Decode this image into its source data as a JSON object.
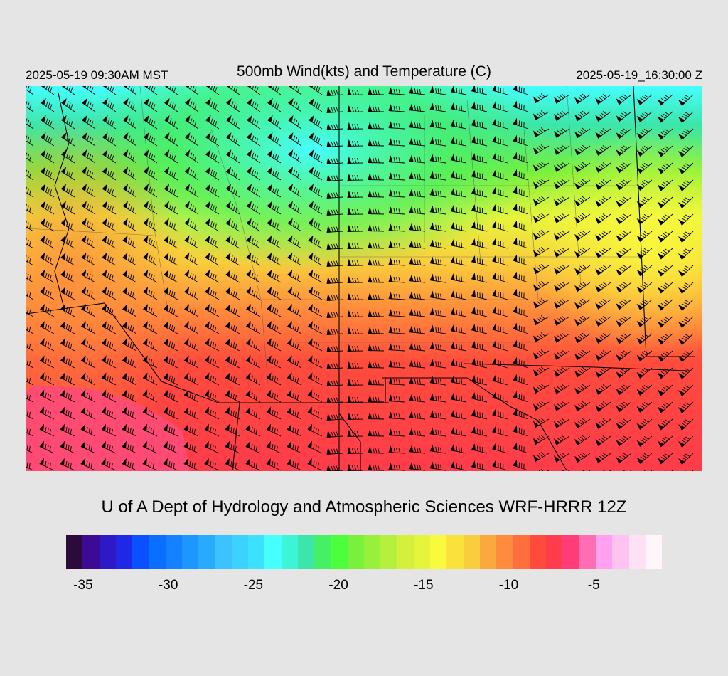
{
  "header": {
    "valid_time": "2025-05-19 09:30AM MST",
    "title": "500mb Wind(kts) and Temperature (C)",
    "init_time": "2025-05-19_16:30:00 Z"
  },
  "footer": {
    "source": "U of A Dept of Hydrology and Atmospheric Sciences WRF-HRRR 12Z"
  },
  "colorbar": {
    "colors": [
      "#2d0a3c",
      "#3c0a96",
      "#2d19c8",
      "#1e28e6",
      "#0a50ff",
      "#0a6eff",
      "#1482ff",
      "#1e96ff",
      "#28aaff",
      "#3cc3ff",
      "#3cd2ff",
      "#3ce1ff",
      "#46ffff",
      "#3cf5d7",
      "#3ce6aa",
      "#46f064",
      "#4bff3c",
      "#78f03c",
      "#96f03c",
      "#b4f03c",
      "#d2f03c",
      "#e6f53c",
      "#fafa3c",
      "#fae13c",
      "#facd3c",
      "#faaa3c",
      "#ff8c3c",
      "#ff6e3c",
      "#ff4b3c",
      "#ff3c4b",
      "#ff3c78",
      "#ff6eb4",
      "#ffa0f0",
      "#ffc3f0",
      "#ffe1f5",
      "#fff5fa"
    ],
    "ticks": [
      "-35",
      "-30",
      "-25",
      "-20",
      "-15",
      "-10",
      "-5"
    ],
    "tick_values": [
      -35,
      -30,
      -25,
      -20,
      -15,
      -10,
      -5
    ],
    "range": [
      -36,
      -1
    ]
  },
  "map": {
    "field": "500mb temperature (C)",
    "wind_units": "kts",
    "temperature_field": {
      "description": "Coolest (about -23 C) over the north-central part of the domain, warming southward to about -8 C near the southern edge, with a warmer pool near -6 C in the southwest corner.",
      "coldest_c": -23,
      "warmest_c": -6
    }
  }
}
